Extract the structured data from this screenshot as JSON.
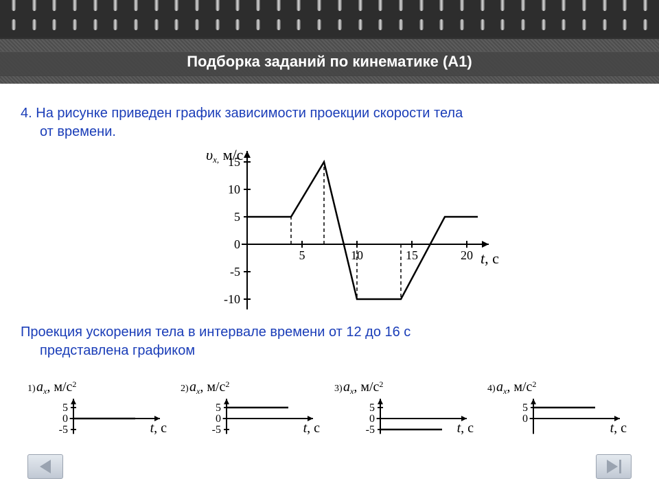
{
  "header": {
    "title": "Подборка заданий по кинематике (А1)"
  },
  "question": {
    "number": "4.",
    "line1": "На рисунке приведен график зависимости проекции скорости тела",
    "line2": "от времени.",
    "prompt_part1": "Проекция ускорения тела в интервале времени от 12 до 16 с",
    "prompt_part2": "представлена графиком"
  },
  "main_chart": {
    "type": "line",
    "y_label": "υₓ, м/с",
    "x_label": "t, с",
    "x_ticks": [
      5,
      10,
      15,
      20
    ],
    "y_ticks": [
      -10,
      -5,
      0,
      5,
      10,
      15
    ],
    "xlim": [
      0,
      22
    ],
    "ylim": [
      -12,
      17
    ],
    "data_points": [
      {
        "t": 0,
        "v": 5
      },
      {
        "t": 4,
        "v": 5
      },
      {
        "t": 7,
        "v": 15
      },
      {
        "t": 10,
        "v": -10
      },
      {
        "t": 14,
        "v": -10
      },
      {
        "t": 18,
        "v": 5
      },
      {
        "t": 21,
        "v": 5
      }
    ],
    "dashed_guides_t": [
      4,
      7,
      10,
      14
    ],
    "line_color": "#000000",
    "line_width": 2.5,
    "axis_color": "#000000",
    "dash_color": "#000000"
  },
  "answer_charts": {
    "common": {
      "y_label": "aₓ, м/с²",
      "x_label": "t, с",
      "y_ticks": [
        -5,
        0,
        5
      ],
      "line_color": "#000000",
      "line_width": 2.5,
      "axis_color": "#000000"
    },
    "options": [
      {
        "num": "1)",
        "line": {
          "y": 0,
          "x0": 0,
          "x1": 5
        },
        "show_neg5": true
      },
      {
        "num": "2)",
        "line": {
          "y": 5,
          "x0": 0,
          "x1": 5
        },
        "show_neg5": true
      },
      {
        "num": "3)",
        "line": {
          "y": -5,
          "x0": 0,
          "x1": 5
        },
        "show_neg5": true
      },
      {
        "num": "4)",
        "line": {
          "y": 5,
          "x0": 0,
          "x1": 5
        },
        "show_neg5": false
      }
    ]
  },
  "colors": {
    "question_text": "#1a3db8",
    "body_text": "#000000",
    "header_bg": "#4d4d4d",
    "title_text": "#ffffff"
  }
}
